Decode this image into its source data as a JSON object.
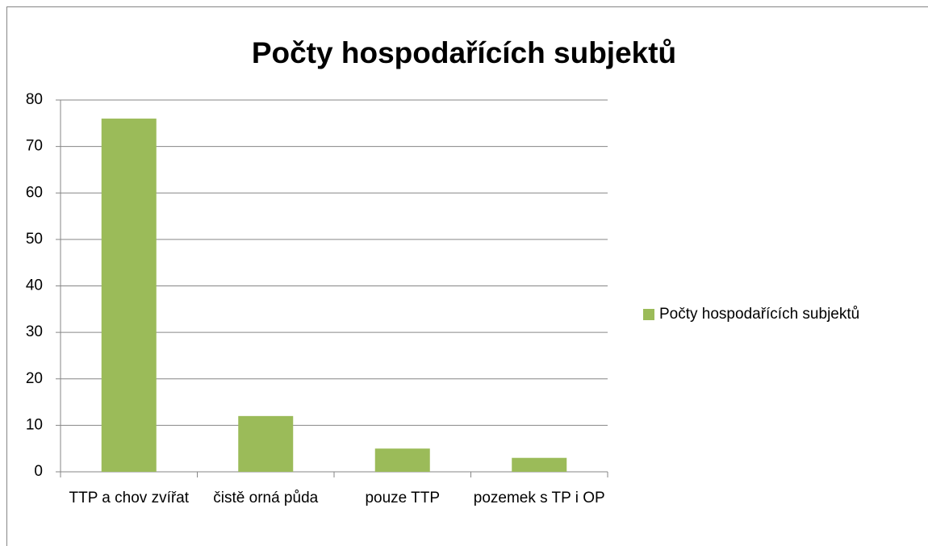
{
  "chart_data": {
    "type": "bar",
    "title": "Počty hospodařících subjektů",
    "categories": [
      "TTP a chov zvířat",
      "čistě orná půda",
      "pouze TTP",
      "pozemek s TP i OP"
    ],
    "series": [
      {
        "name": "Počty hospodařících subjektů",
        "color": "#9bbb59",
        "values": [
          76,
          12,
          5,
          3
        ]
      }
    ],
    "ylim": [
      0,
      80
    ],
    "yticks": [
      0,
      10,
      20,
      30,
      40,
      50,
      60,
      70,
      80
    ],
    "grid": true,
    "legend": "right"
  }
}
